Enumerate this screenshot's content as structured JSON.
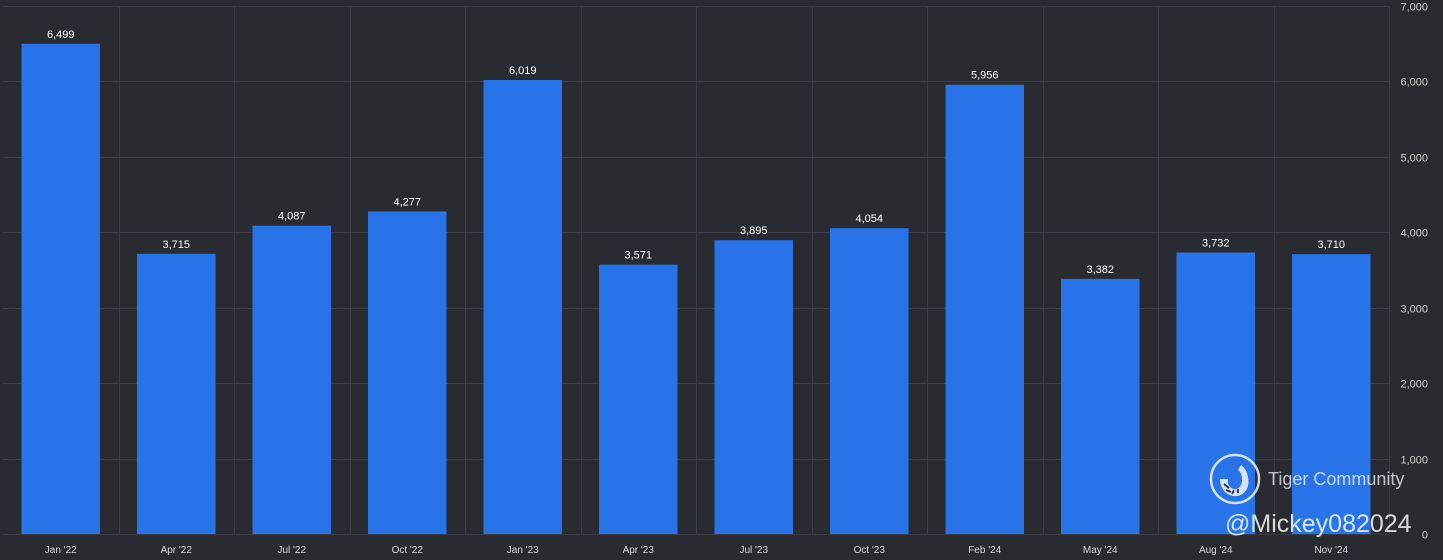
{
  "chart_data": {
    "type": "bar",
    "categories": [
      "Jan '22",
      "Apr '22",
      "Jul '22",
      "Oct '22",
      "Jan '23",
      "Apr '23",
      "Jul '23",
      "Oct '23",
      "Feb '24",
      "May '24",
      "Aug '24",
      "Nov '24"
    ],
    "values": [
      6499,
      3715,
      4087,
      4277,
      6019,
      3571,
      3895,
      4054,
      5956,
      3382,
      3732,
      3710
    ],
    "value_labels": [
      "6,499",
      "3,715",
      "4,087",
      "4,277",
      "6,019",
      "3,571",
      "3,895",
      "4,054",
      "5,956",
      "3,382",
      "3,732",
      "3,710"
    ],
    "ylim": [
      0,
      7000
    ],
    "yticks": [
      0,
      1000,
      2000,
      3000,
      4000,
      5000,
      6000,
      7000
    ],
    "ytick_labels": [
      "0",
      "1,000",
      "2,000",
      "3,000",
      "4,000",
      "5,000",
      "6,000",
      "7,000"
    ],
    "y_axis_side": "right",
    "grid": true,
    "title": "",
    "xlabel": "",
    "ylabel": ""
  },
  "colors": {
    "background": "#2a2b31",
    "bar": "#2873e8",
    "grid": "#3d3e45"
  },
  "watermark": {
    "name": "Tiger Community",
    "handle": "@Mickey082024"
  }
}
